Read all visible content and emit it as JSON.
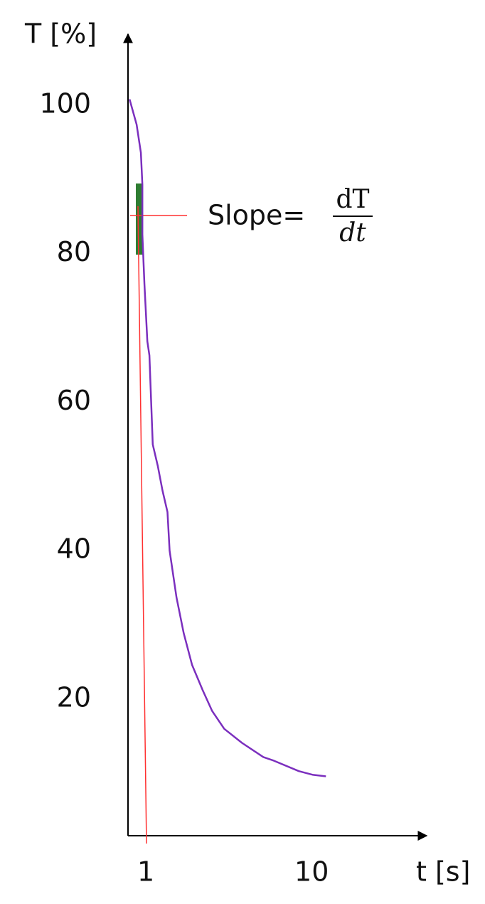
{
  "chart_data": {
    "type": "line",
    "x_label": "t [s]",
    "y_label": "T [%]",
    "xscale": "log",
    "xlim": [
      0.78,
      48
    ],
    "xticks": [
      1,
      10
    ],
    "ylim": [
      1.6,
      109
    ],
    "yticks": [
      20,
      40,
      60,
      80,
      100
    ],
    "grid": false,
    "series": [
      {
        "color": "#7b2fbe",
        "x": [
          0.797,
          0.879,
          0.933,
          0.952,
          0.952,
          0.98,
          1.02,
          1.05,
          1.1,
          1.18,
          1.26,
          1.35,
          1.39,
          1.53,
          1.69,
          1.9,
          2.2,
          2.51,
          2.97,
          3.8,
          5.11,
          5.93,
          8.37,
          10.2,
          12.2
        ],
        "values": [
          100.8,
          97.4,
          93.6,
          89.3,
          82.6,
          75.9,
          68.2,
          66.3,
          54.3,
          51.4,
          48.1,
          45.2,
          40,
          33.7,
          28.9,
          24.6,
          21.2,
          18.4,
          16.0,
          14.1,
          12.2,
          11.7,
          10.3,
          9.8,
          9.6
        ]
      }
    ],
    "annotation": {
      "text": "Slope=",
      "numerator": "dT",
      "denominator": "dt"
    }
  }
}
